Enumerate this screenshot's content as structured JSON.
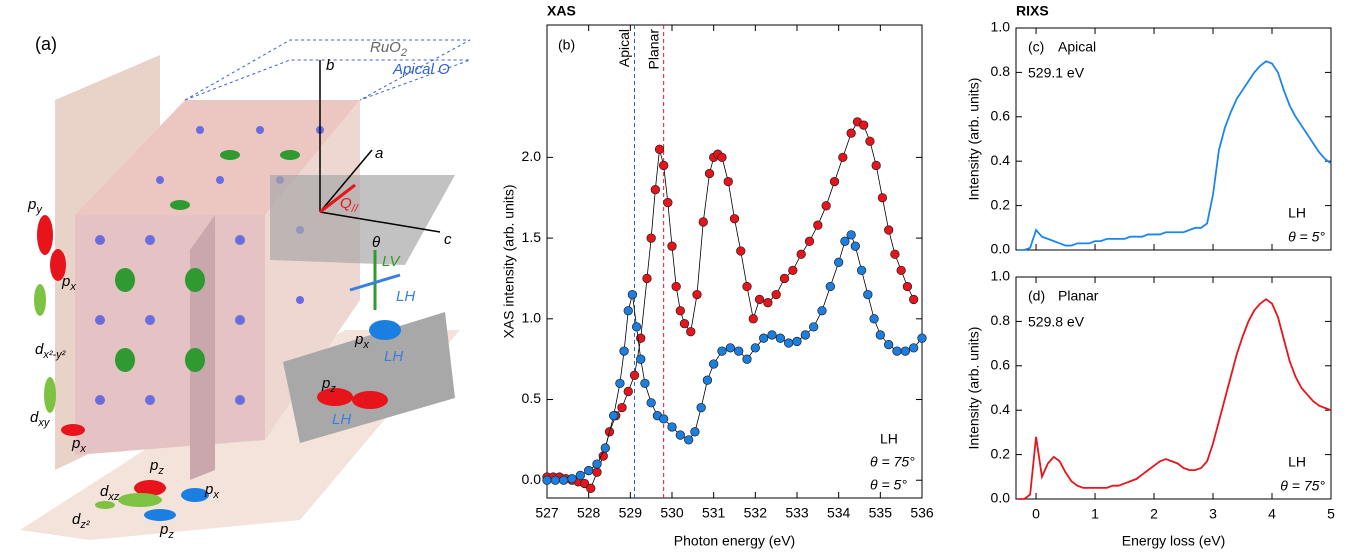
{
  "figure_a": {
    "label": "(a)",
    "texts": [
      {
        "base": "RuO",
        "sub": "2"
      },
      {
        "base": "Apical O"
      },
      {
        "base": "b"
      },
      {
        "base": "a"
      },
      {
        "base": "c"
      },
      {
        "base": "Q",
        "sub": "//"
      },
      {
        "base": "θ"
      },
      {
        "base": "LV"
      },
      {
        "base": "LH"
      },
      {
        "base": "p",
        "sub": "y"
      },
      {
        "base": "p",
        "sub": "x"
      },
      {
        "base": "d",
        "sub": "x²-y²"
      },
      {
        "base": "d",
        "sub": "xy"
      },
      {
        "base": "p",
        "sub": "x"
      },
      {
        "base": "p",
        "sub": "z"
      },
      {
        "base": "d",
        "sub": "xz"
      },
      {
        "base": "p",
        "sub": "x"
      },
      {
        "base": "d",
        "sub": "z²"
      },
      {
        "base": "p",
        "sub": "z"
      },
      {
        "base": "p",
        "sub": "x"
      },
      {
        "base": "LH"
      },
      {
        "base": "p",
        "sub": "z"
      },
      {
        "base": "LH"
      }
    ]
  },
  "chart_data": [
    {
      "type": "line",
      "title": "XAS",
      "panel_label": "(b)",
      "xlabel": "Photon energy (eV)",
      "ylabel": "XAS intensity (arb. units)",
      "xlim": [
        527,
        536
      ],
      "ylim": [
        -0.11,
        2.82
      ],
      "xticks": [
        527,
        528,
        529,
        530,
        531,
        532,
        533,
        534,
        535,
        536
      ],
      "xtick_labels": true,
      "yticks": [
        {
          "value": 0,
          "label": "0.0"
        },
        0.5,
        {
          "value": 1,
          "label": "1.0"
        },
        1.5,
        {
          "value": 2,
          "label": "2.0"
        }
      ],
      "polarization": "LH",
      "vlines": [
        {
          "x": 529.1,
          "label": "Apical",
          "color": "#2a5fd6"
        },
        {
          "x": 529.8,
          "label": "Planar",
          "color": "#e8141b"
        }
      ],
      "series": [
        {
          "name": "θ = 75°",
          "color": "#e8141b",
          "line_color": "#000000",
          "markers": true,
          "x": [
            527.0,
            527.15,
            527.3,
            527.45,
            527.6,
            527.75,
            527.9,
            528.05,
            528.2,
            528.35,
            528.5,
            528.65,
            528.8,
            528.95,
            529.1,
            529.25,
            529.4,
            529.5,
            529.6,
            529.7,
            529.8,
            529.9,
            530.0,
            530.1,
            530.2,
            530.3,
            530.45,
            530.6,
            530.75,
            530.9,
            531.0,
            531.1,
            531.2,
            531.35,
            531.5,
            531.65,
            531.8,
            531.95,
            532.1,
            532.3,
            532.5,
            532.7,
            532.9,
            533.1,
            533.3,
            533.5,
            533.7,
            533.9,
            534.1,
            534.3,
            534.45,
            534.6,
            534.75,
            534.9,
            535.05,
            535.2,
            535.35,
            535.5,
            535.65,
            535.8
          ],
          "values": [
            0.02,
            0.02,
            0.02,
            0.01,
            0.0,
            -0.01,
            -0.02,
            -0.05,
            0.05,
            0.15,
            0.3,
            0.4,
            0.45,
            0.55,
            0.65,
            0.88,
            1.25,
            1.5,
            1.8,
            2.05,
            1.95,
            1.72,
            1.45,
            1.2,
            1.05,
            0.97,
            0.92,
            1.15,
            1.6,
            1.9,
            2.0,
            2.02,
            2.0,
            1.85,
            1.62,
            1.42,
            1.2,
            1.0,
            1.12,
            1.1,
            1.15,
            1.25,
            1.3,
            1.4,
            1.48,
            1.58,
            1.7,
            1.85,
            2.0,
            2.15,
            2.22,
            2.2,
            2.1,
            1.95,
            1.75,
            1.55,
            1.4,
            1.3,
            1.2,
            1.12
          ]
        },
        {
          "name": "θ = 5°",
          "color": "#1a7fe0",
          "line_color": "#000000",
          "markers": true,
          "x": [
            527.0,
            527.2,
            527.4,
            527.6,
            527.8,
            528.0,
            528.2,
            528.4,
            528.6,
            528.75,
            528.85,
            528.95,
            529.05,
            529.15,
            529.25,
            529.35,
            529.5,
            529.65,
            529.8,
            530.0,
            530.2,
            530.4,
            530.55,
            530.7,
            530.85,
            531.0,
            531.2,
            531.4,
            531.6,
            531.8,
            532.0,
            532.2,
            532.4,
            532.6,
            532.8,
            533.0,
            533.2,
            533.4,
            533.6,
            533.8,
            534.0,
            534.15,
            534.3,
            534.4,
            534.55,
            534.7,
            534.85,
            535.0,
            535.2,
            535.4,
            535.6,
            535.8,
            536.0
          ],
          "values": [
            0.0,
            0.0,
            0.0,
            0.01,
            0.03,
            0.06,
            0.1,
            0.2,
            0.4,
            0.6,
            0.8,
            1.05,
            1.15,
            0.95,
            0.75,
            0.6,
            0.48,
            0.4,
            0.38,
            0.33,
            0.28,
            0.25,
            0.3,
            0.45,
            0.62,
            0.72,
            0.8,
            0.82,
            0.8,
            0.75,
            0.82,
            0.88,
            0.9,
            0.88,
            0.85,
            0.86,
            0.9,
            0.95,
            1.05,
            1.2,
            1.35,
            1.48,
            1.52,
            1.45,
            1.3,
            1.15,
            1.0,
            0.9,
            0.84,
            0.8,
            0.8,
            0.82,
            0.88
          ]
        }
      ]
    },
    {
      "type": "line",
      "title": "RIXS",
      "panel_label": "(c)",
      "edge": "Apical",
      "energy": "529.1 eV",
      "ylabel": "Intensity (arb. units)",
      "xlim": [
        -0.34,
        5
      ],
      "ylim": [
        0,
        1
      ],
      "xticks": [
        0,
        1,
        2,
        3,
        4,
        5
      ],
      "xtick_labels": false,
      "yticks": [
        {
          "value": 0,
          "label": "0.0"
        },
        0.2,
        0.4,
        0.6,
        0.8,
        {
          "value": 1,
          "label": "1.0"
        }
      ],
      "polarization": "LH",
      "series": [
        {
          "name": "θ = 5°",
          "color": "#1c86ee",
          "line_color": "#1c86ee",
          "markers": false,
          "x": [
            -0.3,
            -0.2,
            -0.1,
            0,
            0.1,
            0.2,
            0.3,
            0.4,
            0.5,
            0.6,
            0.7,
            0.8,
            0.9,
            1,
            1.1,
            1.2,
            1.3,
            1.4,
            1.5,
            1.6,
            1.7,
            1.8,
            1.9,
            2,
            2.1,
            2.2,
            2.3,
            2.4,
            2.5,
            2.6,
            2.7,
            2.8,
            2.9,
            3,
            3.1,
            3.2,
            3.3,
            3.4,
            3.5,
            3.6,
            3.7,
            3.8,
            3.9,
            4,
            4.1,
            4.2,
            4.3,
            4.4,
            4.5,
            4.6,
            4.7,
            4.8,
            4.9,
            5
          ],
          "values": [
            0.0,
            0.0,
            0.01,
            0.09,
            0.06,
            0.05,
            0.04,
            0.03,
            0.02,
            0.02,
            0.03,
            0.03,
            0.03,
            0.04,
            0.04,
            0.05,
            0.05,
            0.05,
            0.05,
            0.06,
            0.06,
            0.06,
            0.07,
            0.07,
            0.07,
            0.08,
            0.08,
            0.08,
            0.08,
            0.09,
            0.1,
            0.1,
            0.12,
            0.25,
            0.45,
            0.55,
            0.62,
            0.68,
            0.72,
            0.76,
            0.8,
            0.83,
            0.85,
            0.84,
            0.8,
            0.72,
            0.65,
            0.6,
            0.56,
            0.52,
            0.48,
            0.44,
            0.41,
            0.39
          ]
        }
      ]
    },
    {
      "type": "line",
      "panel_label": "(d)",
      "edge": "Planar",
      "energy": "529.8 eV",
      "xlabel": "Energy loss (eV)",
      "ylabel": "Intensity (arb. units)",
      "xlim": [
        -0.34,
        5
      ],
      "ylim": [
        0,
        1
      ],
      "xticks": [
        0,
        1,
        2,
        3,
        4,
        5
      ],
      "xtick_labels": true,
      "yticks": [
        {
          "value": 0,
          "label": "0.0"
        },
        0.2,
        0.4,
        0.6,
        0.8,
        {
          "value": 1,
          "label": "1.0"
        }
      ],
      "polarization": "LH",
      "series": [
        {
          "name": "θ = 75°",
          "color": "#e8141b",
          "line_color": "#e8141b",
          "markers": false,
          "x": [
            -0.3,
            -0.2,
            -0.1,
            0,
            0.1,
            0.2,
            0.3,
            0.4,
            0.5,
            0.6,
            0.7,
            0.8,
            0.9,
            1,
            1.1,
            1.2,
            1.3,
            1.4,
            1.5,
            1.6,
            1.7,
            1.8,
            1.9,
            2,
            2.1,
            2.2,
            2.3,
            2.4,
            2.5,
            2.6,
            2.7,
            2.8,
            2.9,
            3,
            3.1,
            3.2,
            3.3,
            3.4,
            3.5,
            3.6,
            3.7,
            3.8,
            3.9,
            4,
            4.1,
            4.2,
            4.3,
            4.4,
            4.5,
            4.6,
            4.7,
            4.8,
            4.9,
            5
          ],
          "values": [
            0.0,
            0.0,
            0.02,
            0.28,
            0.1,
            0.16,
            0.19,
            0.17,
            0.12,
            0.08,
            0.06,
            0.05,
            0.05,
            0.05,
            0.05,
            0.05,
            0.06,
            0.06,
            0.07,
            0.08,
            0.09,
            0.11,
            0.13,
            0.15,
            0.17,
            0.18,
            0.17,
            0.16,
            0.14,
            0.13,
            0.13,
            0.14,
            0.17,
            0.25,
            0.35,
            0.45,
            0.55,
            0.65,
            0.73,
            0.8,
            0.85,
            0.88,
            0.9,
            0.88,
            0.82,
            0.72,
            0.62,
            0.55,
            0.5,
            0.47,
            0.44,
            0.42,
            0.41,
            0.4
          ]
        }
      ]
    }
  ]
}
